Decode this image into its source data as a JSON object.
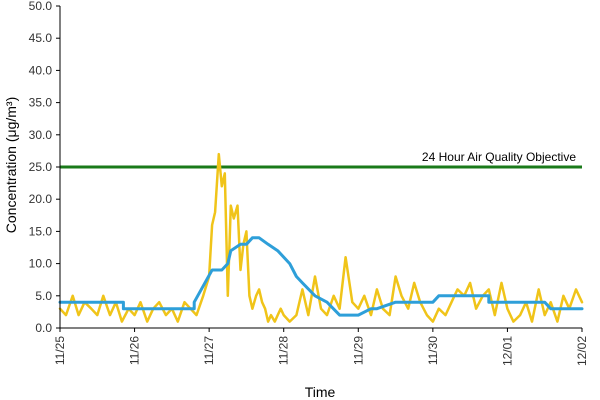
{
  "chart_data": {
    "type": "line",
    "xlabel": "Time",
    "ylabel": "Concentration (μg/m³)",
    "ylim": [
      0,
      50
    ],
    "y_ticks": [
      "0.0",
      "5.0",
      "10.0",
      "15.0",
      "20.0",
      "25.0",
      "30.0",
      "35.0",
      "40.0",
      "45.0",
      "50.0"
    ],
    "x_tick_labels": [
      "11/25",
      "11/26",
      "11/27",
      "11/28",
      "11/29",
      "11/30",
      "12/01",
      "12/02"
    ],
    "x_range_days": [
      0,
      7
    ],
    "grid": false,
    "reference_line": {
      "value": 25,
      "label": "24 Hour Air Quality Objective",
      "color": "#1a7a1a"
    },
    "series": [
      {
        "color": "#f0c419",
        "x": [
          0.0,
          0.08,
          0.17,
          0.25,
          0.33,
          0.42,
          0.5,
          0.58,
          0.67,
          0.75,
          0.83,
          0.92,
          1.0,
          1.08,
          1.17,
          1.25,
          1.33,
          1.42,
          1.5,
          1.58,
          1.67,
          1.75,
          1.83,
          1.92,
          2.0,
          2.04,
          2.08,
          2.13,
          2.17,
          2.21,
          2.25,
          2.29,
          2.33,
          2.38,
          2.42,
          2.46,
          2.5,
          2.54,
          2.58,
          2.63,
          2.67,
          2.71,
          2.75,
          2.79,
          2.83,
          2.88,
          2.92,
          2.96,
          3.0,
          3.08,
          3.17,
          3.25,
          3.33,
          3.42,
          3.5,
          3.58,
          3.67,
          3.75,
          3.83,
          3.92,
          4.0,
          4.08,
          4.17,
          4.25,
          4.33,
          4.42,
          4.5,
          4.58,
          4.67,
          4.75,
          4.83,
          4.92,
          5.0,
          5.08,
          5.17,
          5.25,
          5.33,
          5.42,
          5.5,
          5.58,
          5.67,
          5.75,
          5.83,
          5.92,
          6.0,
          6.08,
          6.17,
          6.25,
          6.33,
          6.42,
          6.5,
          6.58,
          6.67,
          6.75,
          6.83,
          6.92,
          7.0
        ],
        "values": [
          3,
          2,
          5,
          2,
          4,
          3,
          2,
          5,
          2,
          4,
          1,
          3,
          2,
          4,
          1,
          3,
          4,
          2,
          3,
          1,
          4,
          3,
          2,
          5,
          8,
          16,
          18,
          27,
          22,
          24,
          5,
          19,
          17,
          19,
          9,
          13,
          15,
          5,
          3,
          5,
          6,
          4,
          3,
          1,
          2,
          1,
          2,
          3,
          2,
          1,
          2,
          6,
          2,
          8,
          3,
          2,
          5,
          3,
          11,
          4,
          3,
          5,
          2,
          6,
          3,
          2,
          8,
          5,
          3,
          7,
          4,
          2,
          1,
          3,
          2,
          4,
          6,
          5,
          7,
          3,
          5,
          6,
          2,
          7,
          3,
          1,
          2,
          4,
          1,
          6,
          2,
          4,
          1,
          5,
          3,
          6,
          4
        ]
      },
      {
        "color": "#2e9fd9",
        "x": [
          0,
          0.85,
          0.85,
          1.8,
          1.8,
          2.04,
          2.17,
          2.25,
          2.29,
          2.42,
          2.5,
          2.58,
          2.67,
          2.79,
          2.92,
          3.08,
          3.17,
          3.25,
          3.42,
          3.58,
          3.75,
          3.92,
          4.0,
          4.17,
          4.25,
          4.5,
          4.6,
          5.0,
          5.08,
          5.75,
          5.75,
          6.5,
          6.58,
          7.0
        ],
        "values": [
          4,
          4,
          3,
          3,
          4,
          9,
          9,
          10,
          12,
          13,
          13,
          14,
          14,
          13,
          12,
          10,
          8,
          7,
          5,
          4,
          2,
          2,
          2,
          3,
          3,
          4,
          4,
          4,
          5,
          5,
          4,
          4,
          3,
          3
        ]
      }
    ]
  }
}
